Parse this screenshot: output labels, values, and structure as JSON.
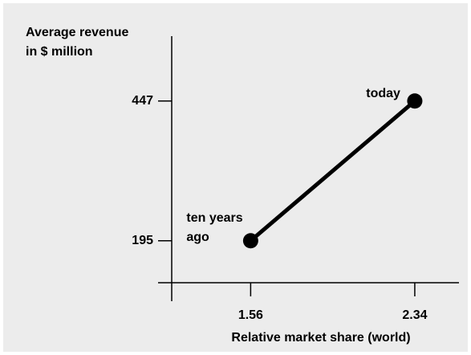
{
  "chart_data": {
    "type": "line",
    "y_label": [
      "Average revenue",
      "in $ million"
    ],
    "x_label": "Relative market share (world)",
    "x": [
      1.56,
      2.34
    ],
    "series": [
      {
        "name": null,
        "color": "#000000",
        "values": [
          195,
          447
        ]
      }
    ],
    "annotations": [
      [
        "ten years",
        "ago"
      ],
      [
        "today"
      ]
    ],
    "xlim": [
      1.12,
      2.55
    ],
    "xticks": [
      1.56,
      2.34
    ],
    "ylim": [
      86,
      564
    ],
    "yticks": [
      195,
      447
    ],
    "grid": false
  }
}
